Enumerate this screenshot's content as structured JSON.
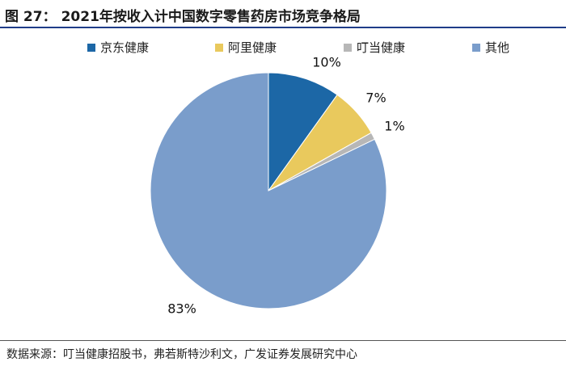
{
  "figure": {
    "label": "图 27：",
    "title": "2021年按收入计中国数字零售药房市场竞争格局"
  },
  "source_note": "数据来源：叮当健康招股书，弗若斯特沙利文，广发证券发展研究中心",
  "colors": {
    "jd": "#1c67a6",
    "ali": "#e9c95d",
    "dingdang": "#b7b7b7",
    "other": "#7a9dcb",
    "rule": "#1f3c88"
  },
  "chart_data": {
    "type": "pie",
    "title": "",
    "legend_position": "top",
    "categories": [
      "京东健康",
      "阿里健康",
      "叮当健康",
      "其他"
    ],
    "values": [
      10,
      7,
      1,
      83
    ],
    "value_labels": [
      "10%",
      "7%",
      "1%",
      "83%"
    ],
    "start_angle": "12 o'clock",
    "direction": "clockwise"
  }
}
